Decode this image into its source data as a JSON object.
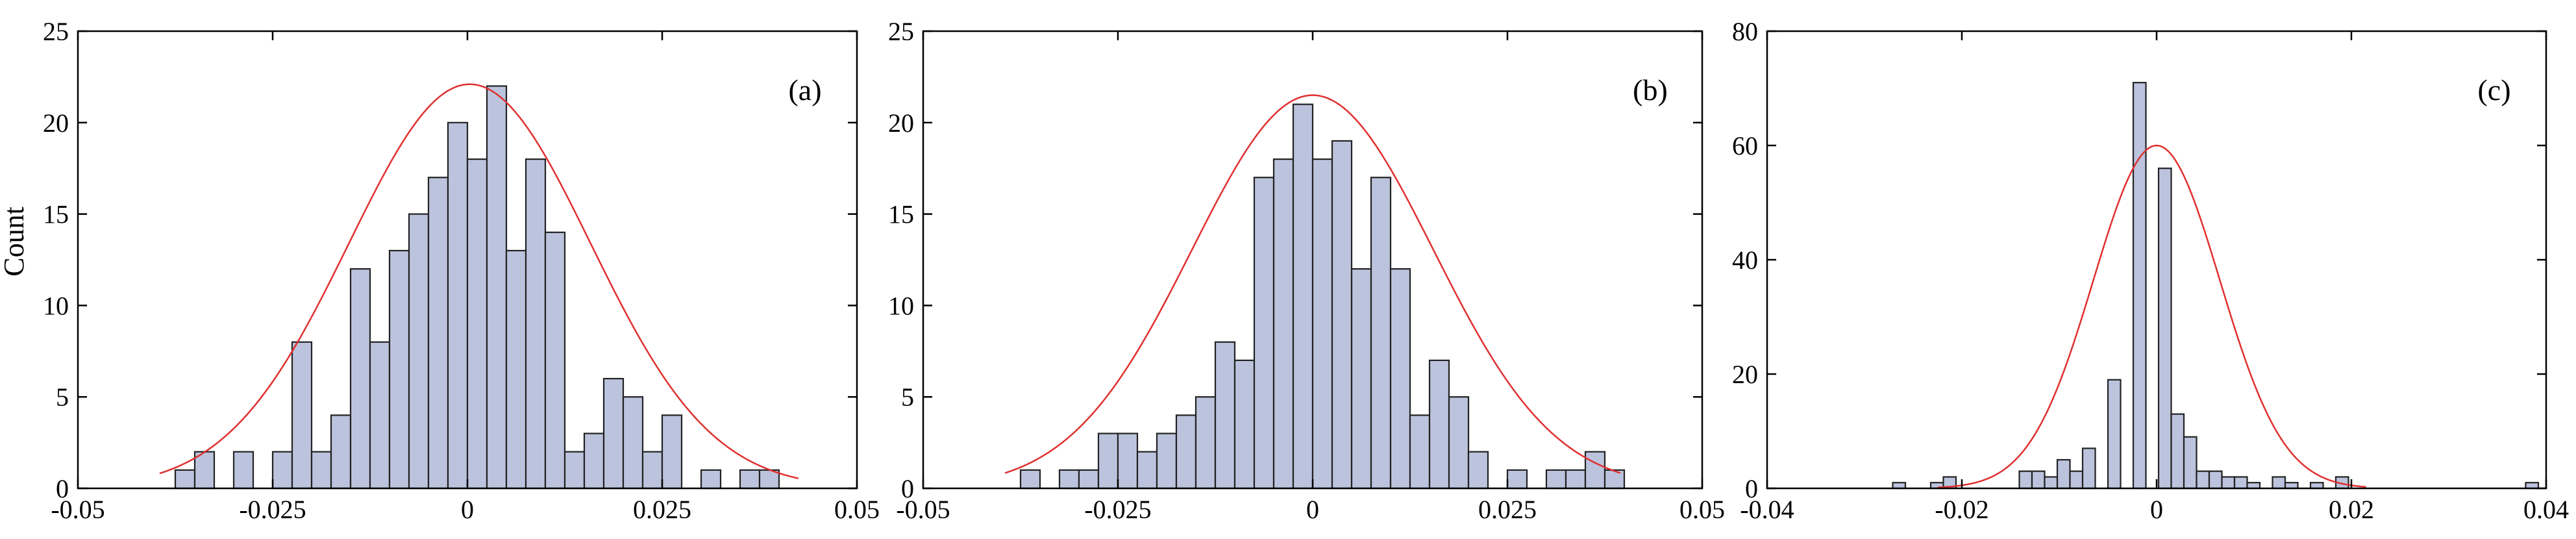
{
  "figure": {
    "ylabel": "Count"
  },
  "chart_data": [
    {
      "type": "bar",
      "panel_label": "(a)",
      "xlim": [
        -0.05,
        0.05
      ],
      "ylim": [
        0,
        25
      ],
      "xticks": [
        -0.05,
        -0.025,
        0,
        0.025,
        0.05
      ],
      "xtick_labels": [
        "-0.05",
        "-0.025",
        "0",
        "0.025",
        "0.05"
      ],
      "yticks": [
        0,
        5,
        10,
        15,
        20,
        25
      ],
      "ytick_labels": [
        "0",
        "5",
        "10",
        "15",
        "20",
        "25"
      ],
      "ylabel": "Count",
      "bin_width": 0.0025,
      "bins": [
        [
          -0.03625,
          1
        ],
        [
          -0.03375,
          2
        ],
        [
          -0.02875,
          2
        ],
        [
          -0.02375,
          2
        ],
        [
          -0.02125,
          8
        ],
        [
          -0.01875,
          2
        ],
        [
          -0.01625,
          4
        ],
        [
          -0.01375,
          12
        ],
        [
          -0.01125,
          8
        ],
        [
          -0.00875,
          13
        ],
        [
          -0.00625,
          15
        ],
        [
          -0.00375,
          17
        ],
        [
          -0.00125,
          20
        ],
        [
          0.00125,
          18
        ],
        [
          0.00375,
          22
        ],
        [
          0.00625,
          13
        ],
        [
          0.00875,
          18
        ],
        [
          0.01125,
          14
        ],
        [
          0.01375,
          2
        ],
        [
          0.01625,
          3
        ],
        [
          0.01875,
          6
        ],
        [
          0.02125,
          5
        ],
        [
          0.02375,
          2
        ],
        [
          0.02625,
          4
        ],
        [
          0.03125,
          1
        ],
        [
          0.03625,
          1
        ],
        [
          0.03875,
          1
        ]
      ],
      "fit_curve": {
        "type": "gaussian",
        "color": "#e03030",
        "mean": 0.0003,
        "peak": 22.1,
        "sigma": 0.0155,
        "x_range": [
          -0.0395,
          0.0425
        ]
      },
      "bar_color": "#bcc3dd",
      "bar_edge": "#222222"
    },
    {
      "type": "bar",
      "panel_label": "(b)",
      "xlim": [
        -0.05,
        0.05
      ],
      "ylim": [
        0,
        25
      ],
      "xticks": [
        -0.05,
        -0.025,
        0,
        0.025,
        0.05
      ],
      "xtick_labels": [
        "-0.05",
        "-0.025",
        "0",
        "0.025",
        "0.05"
      ],
      "yticks": [
        0,
        5,
        10,
        15,
        20,
        25
      ],
      "ytick_labels": [
        "0",
        "5",
        "10",
        "15",
        "20",
        "25"
      ],
      "bin_width": 0.0025,
      "bins": [
        [
          -0.03625,
          1
        ],
        [
          -0.03125,
          1
        ],
        [
          -0.02875,
          1
        ],
        [
          -0.02625,
          3
        ],
        [
          -0.02375,
          3
        ],
        [
          -0.02125,
          2
        ],
        [
          -0.01875,
          3
        ],
        [
          -0.01625,
          4
        ],
        [
          -0.01375,
          5
        ],
        [
          -0.01125,
          8
        ],
        [
          -0.00875,
          7
        ],
        [
          -0.00625,
          17
        ],
        [
          -0.00375,
          18
        ],
        [
          -0.00125,
          21
        ],
        [
          0.00125,
          18
        ],
        [
          0.00375,
          19
        ],
        [
          0.00625,
          12
        ],
        [
          0.00875,
          17
        ],
        [
          0.01125,
          12
        ],
        [
          0.01375,
          4
        ],
        [
          0.01625,
          7
        ],
        [
          0.01875,
          5
        ],
        [
          0.02125,
          2
        ],
        [
          0.02625,
          1
        ],
        [
          0.03125,
          1
        ],
        [
          0.03375,
          1
        ],
        [
          0.03625,
          2
        ],
        [
          0.03875,
          1
        ]
      ],
      "fit_curve": {
        "type": "gaussian",
        "color": "#e03030",
        "mean": 0.0,
        "peak": 21.5,
        "sigma": 0.0155,
        "x_range": [
          -0.0395,
          0.0395
        ]
      },
      "bar_color": "#bcc3dd",
      "bar_edge": "#222222"
    },
    {
      "type": "bar",
      "panel_label": "(c)",
      "xlim": [
        -0.04,
        0.04
      ],
      "ylim": [
        0,
        80
      ],
      "xticks": [
        -0.04,
        -0.02,
        0,
        0.02,
        0.04
      ],
      "xtick_labels": [
        "-0.04",
        "-0.02",
        "0",
        "0.02",
        "0.04"
      ],
      "yticks": [
        0,
        20,
        40,
        60,
        80
      ],
      "ytick_labels": [
        "0",
        "20",
        "40",
        "60",
        "80"
      ],
      "bin_width": 0.0013,
      "bins": [
        [
          -0.02645,
          1
        ],
        [
          -0.02255,
          1
        ],
        [
          -0.02125,
          2
        ],
        [
          -0.01345,
          3
        ],
        [
          -0.01215,
          3
        ],
        [
          -0.01085,
          2
        ],
        [
          -0.00955,
          5
        ],
        [
          -0.00825,
          3
        ],
        [
          -0.00695,
          7
        ],
        [
          -0.00435,
          19
        ],
        [
          -0.00175,
          71
        ],
        [
          0.00085,
          56
        ],
        [
          0.00215,
          13
        ],
        [
          0.00345,
          9
        ],
        [
          0.00475,
          3
        ],
        [
          0.00605,
          3
        ],
        [
          0.00735,
          2
        ],
        [
          0.00865,
          2
        ],
        [
          0.00995,
          1
        ],
        [
          0.01255,
          2
        ],
        [
          0.01385,
          1
        ],
        [
          0.01645,
          1
        ],
        [
          0.01905,
          2
        ],
        [
          0.03855,
          1
        ]
      ],
      "fit_curve": {
        "type": "gaussian",
        "color": "#e03030",
        "mean": 0.0,
        "peak": 60,
        "sigma": 0.0065,
        "x_range": [
          -0.0225,
          0.0215
        ]
      },
      "bar_color": "#bcc3dd",
      "bar_edge": "#222222"
    }
  ]
}
